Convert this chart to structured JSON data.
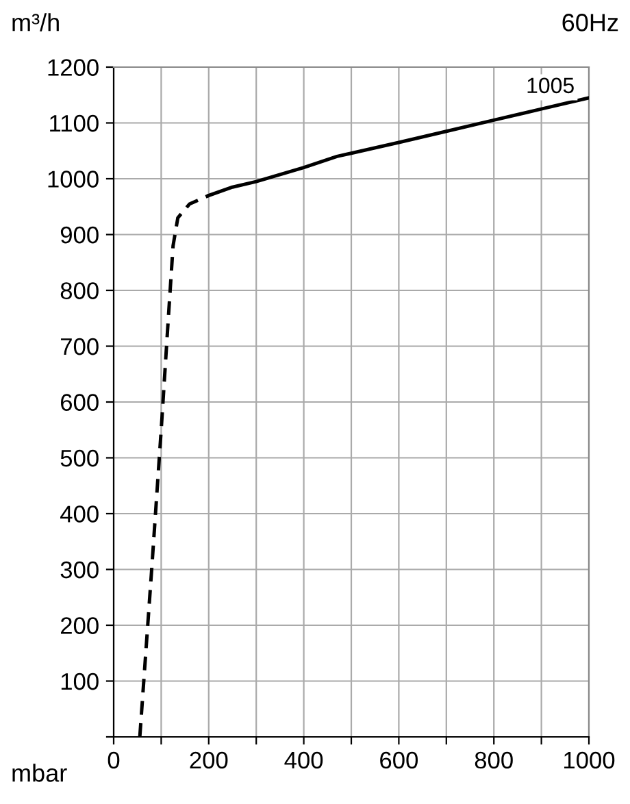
{
  "chart_data": {
    "type": "line",
    "title": "60Hz",
    "ylabel": "m³/h",
    "xlabel": "mbar",
    "annotations": [
      "1005"
    ],
    "series": [
      {
        "color": "#000000",
        "line_style": "dashed",
        "x": [
          55,
          80,
          100,
          115,
          125,
          135,
          160,
          200
        ],
        "values": [
          0,
          300,
          550,
          750,
          880,
          930,
          955,
          970
        ]
      },
      {
        "color": "#000000",
        "line_style": "solid",
        "x": [
          200,
          250,
          300,
          400,
          470,
          600,
          700,
          800,
          900,
          1000
        ],
        "values": [
          970,
          985,
          995,
          1020,
          1040,
          1065,
          1085,
          1105,
          1125,
          1145
        ]
      }
    ],
    "xlim": [
      0,
      1000
    ],
    "ylim": [
      0,
      1200
    ],
    "xticks": [
      0,
      {
        "value": 100,
        "label": null
      },
      200,
      {
        "value": 300,
        "label": null
      },
      400,
      {
        "value": 500,
        "label": null
      },
      600,
      {
        "value": 700,
        "label": null
      },
      800,
      {
        "value": 900,
        "label": null
      },
      1000
    ],
    "yticks": [
      {
        "value": 0,
        "label": null
      },
      100,
      200,
      300,
      400,
      500,
      600,
      700,
      800,
      900,
      1000,
      1100,
      1200
    ],
    "grid": true,
    "marker": "none"
  }
}
